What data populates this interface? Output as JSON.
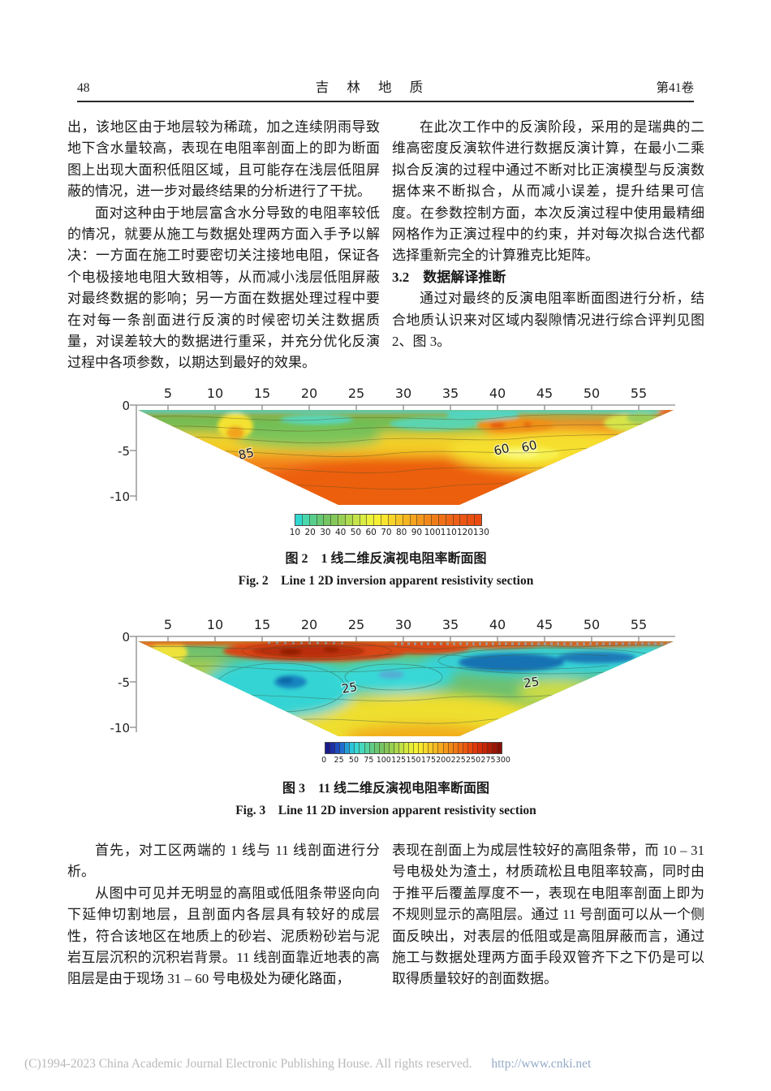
{
  "header": {
    "page_number": "48",
    "journal_title": "吉 林 地 质",
    "volume": "第41卷"
  },
  "body": {
    "left_top_p1": "出，该地区由于地层较为稀疏，加之连续阴雨导致地下含水量较高，表现在电阻率剖面上的即为断面图上出现大面积低阻区域，且可能存在浅层低阻屏蔽的情况，进一步对最终结果的分析进行了干扰。",
    "left_top_p2": "面对这种由于地层富含水分导致的电阻率较低的情况，就要从施工与数据处理两方面入手予以解决：一方面在施工时要密切关注接地电阻，保证各个电极接地电阻大致相等，从而减小浅层低阻屏蔽对最终数据的影响；另一方面在数据处理过程中要在对每一条剖面进行反演的时候密切关注数据质量，对误差较大的数据进行重采，并充分优化反演过程中各项参数，以期达到最好的效果。",
    "right_top_p1": "在此次工作中的反演阶段，采用的是瑞典的二维高密度反演软件进行数据反演计算，在最小二乘拟合反演的过程中通过不断对比正演模型与反演数据体来不断拟合，从而减小误差，提升结果可信度。在参数控制方面，本次反演过程中使用最精细网格作为正演过程中的约束，并对每次拟合迭代都选择重新完全的计算雅克比矩阵。",
    "right_top_heading": "3.2　数据解译推断",
    "right_top_p2": "通过对最终的反演电阻率断面图进行分析，结合地质认识来对区域内裂隙情况进行综合评判见图 2、图 3。",
    "left_bottom_p1": "首先，对工区两端的 1 线与 11 线剖面进行分析。",
    "left_bottom_p2": "从图中可见并无明显的高阻或低阻条带竖向向下延伸切割地层，且剖面内各层具有较好的成层性，符合该地区在地质上的砂岩、泥质粉砂岩与泥岩互层沉积的沉积岩背景。11 线剖面靠近地表的高阻层是由于现场 31 – 60 号电极处为硬化路面，",
    "right_bottom_p1": "表现在剖面上为成层性较好的高阻条带，而 10 – 31 号电极处为渣土，材质疏松且电阻率较高，同时由于推平后覆盖厚度不一，表现在电阻率剖面上即为不规则显示的高阻层。通过 11 号剖面可以从一个侧面反映出，对表层的低阻或是高阻屏蔽而言，通过施工与数据处理两方面手段双管齐下之下仍是可以取得质量较好的剖面数据。"
  },
  "figures": [
    {
      "caption_zh": "图 2　1 线二维反演视电阻率断面图",
      "caption_en": "Fig. 2　Line 1 2D inversion apparent resistivity section",
      "xticks": [
        "5",
        "10",
        "15",
        "20",
        "25",
        "30",
        "35",
        "40",
        "45",
        "50",
        "55"
      ],
      "yticks": [
        "0",
        "-5",
        "-10"
      ],
      "contours": [
        "85",
        "60",
        "60"
      ],
      "colorbar": {
        "labels": [
          "10",
          "20",
          "30",
          "40",
          "50",
          "60",
          "70",
          "80",
          "90",
          "100",
          "110",
          "120",
          "130"
        ],
        "colors": [
          "#30D8D0",
          "#48D8AC",
          "#58D08C",
          "#66CA74",
          "#74C462",
          "#84C85C",
          "#98D056",
          "#AEDA50",
          "#C4E44A",
          "#DAEC44",
          "#ECF23C",
          "#F6F034",
          "#F8E42E",
          "#F7D42A",
          "#F6C426",
          "#F5B422",
          "#F4A41F",
          "#F3961D",
          "#F2881B",
          "#F07C19",
          "#EF7017",
          "#EE6616",
          "#ED5E15",
          "#EC5614",
          "#EB5013",
          "#EA4A12"
        ]
      }
    },
    {
      "caption_zh": "图 3　11 线二维反演视电阻率断面图",
      "caption_en": "Fig. 3　Line 11 2D inversion apparent resistivity section",
      "xticks": [
        "5",
        "10",
        "15",
        "20",
        "25",
        "30",
        "35",
        "40",
        "45",
        "50",
        "55"
      ],
      "yticks": [
        "0",
        "-5",
        "-10"
      ],
      "contours": [
        "25",
        "25"
      ],
      "colorbar": {
        "labels": [
          "0",
          "25",
          "50",
          "75",
          "100",
          "125",
          "150",
          "175",
          "200",
          "225",
          "250",
          "275",
          "300"
        ],
        "colors": [
          "#1A1A8C",
          "#1C2FA8",
          "#1E4CC0",
          "#2070D0",
          "#24A0D8",
          "#2CC4DC",
          "#38D8D4",
          "#44D8BC",
          "#52D4A0",
          "#60CC86",
          "#6CC870",
          "#78C462",
          "#86C858",
          "#98D052",
          "#ACD84C",
          "#C0E046",
          "#D4E840",
          "#E6EE3A",
          "#F4F034",
          "#F8E82E",
          "#F8D82A",
          "#F7C826",
          "#F6B822",
          "#F5A81E",
          "#F4981B",
          "#F38818",
          "#F17815",
          "#EF6813",
          "#EC5810",
          "#E8480D",
          "#E0380B",
          "#D42C09",
          "#C42407",
          "#B01C06",
          "#9C1405",
          "#880E04"
        ]
      }
    }
  ],
  "chart_data": [
    {
      "type": "heatmap",
      "title": "图 2　1 线二维反演视电阻率断面图 / Fig. 2 Line 1 2D inversion apparent resistivity section",
      "x_axis": {
        "ticks": [
          5,
          10,
          15,
          20,
          25,
          30,
          35,
          40,
          45,
          50,
          55
        ],
        "range": [
          2,
          58
        ]
      },
      "y_axis": {
        "ticks": [
          0,
          -5,
          -10
        ],
        "range": [
          0,
          -11
        ]
      },
      "colorbar_values": [
        10,
        20,
        30,
        40,
        50,
        60,
        70,
        80,
        90,
        100,
        110,
        120,
        130
      ],
      "contour_annotations": [
        {
          "value": 85,
          "x": 11.5,
          "depth": -5.4
        },
        {
          "value": 60,
          "x": 38.9,
          "depth": -4.8
        },
        {
          "value": 60,
          "x": 41.6,
          "depth": -4.6
        }
      ],
      "description": "Inverted-trapezoid resistivity section: thin cyan strip at surface, green band below, grading through yellow to orange-red high resistivity (>100) at depth; yellow low pocket (~60) near x=40-46."
    },
    {
      "type": "heatmap",
      "title": "图 3　11 线二维反演视电阻率断面图 / Fig. 3 Line 11 2D inversion apparent resistivity section",
      "x_axis": {
        "ticks": [
          5,
          10,
          15,
          20,
          25,
          30,
          35,
          40,
          45,
          50,
          55
        ],
        "range": [
          2,
          58
        ]
      },
      "y_axis": {
        "ticks": [
          0,
          -5,
          -10
        ],
        "range": [
          0,
          -11
        ]
      },
      "colorbar_values": [
        0,
        25,
        50,
        75,
        100,
        125,
        150,
        175,
        200,
        225,
        250,
        275,
        300
      ],
      "contour_annotations": [
        {
          "value": 25,
          "x": 22.6,
          "depth": -5.6
        },
        {
          "value": 25,
          "x": 42.0,
          "depth": -5.2
        }
      ],
      "description": "High-resistivity red band along surface (strongest x=10-25), dark-blue/cyan low-resistivity zones beneath surface on right half and at mid-depth left-center; green-yellow background with yellow-orange zone at bottom center."
    }
  ],
  "footer": {
    "copyright": "(C)1994-2023 China Academic Journal Electronic Publishing House. All rights reserved.",
    "url": "http://www.cnki.net"
  }
}
